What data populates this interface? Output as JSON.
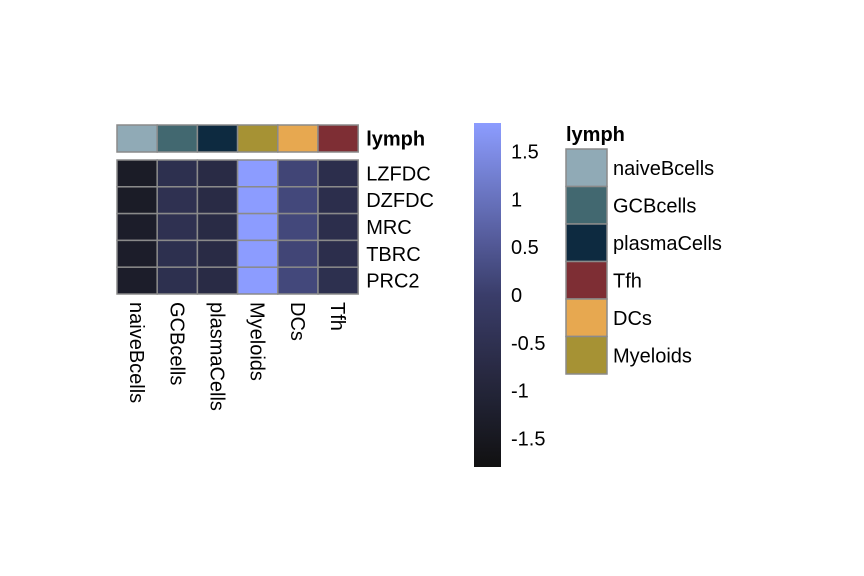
{
  "chart_data": {
    "type": "heatmap",
    "columns": [
      "naiveBcells",
      "GCBcells",
      "plasmaCells",
      "Myeloids",
      "DCs",
      "Tfh"
    ],
    "rows": [
      "LZFDC",
      "DZFDC",
      "MRC",
      "TBRC",
      "PRC2"
    ],
    "values": [
      [
        -1.35,
        -0.55,
        -0.75,
        1.8,
        0.15,
        -0.6
      ],
      [
        -1.35,
        -0.5,
        -0.75,
        1.8,
        0.2,
        -0.6
      ],
      [
        -1.3,
        -0.5,
        -0.75,
        1.8,
        0.2,
        -0.6
      ],
      [
        -1.3,
        -0.55,
        -0.75,
        1.8,
        0.15,
        -0.6
      ],
      [
        -1.3,
        -0.55,
        -0.75,
        1.8,
        0.2,
        -0.55
      ]
    ],
    "annotation": {
      "title": "lymph",
      "column_groups": [
        "naiveBcells",
        "GCBcells",
        "plasmaCells",
        "Myeloids",
        "DCs",
        "Tfh"
      ],
      "legend_entries": [
        {
          "label": "naiveBcells",
          "color": "#90AAB6"
        },
        {
          "label": "GCBcells",
          "color": "#426870"
        },
        {
          "label": "plasmaCells",
          "color": "#0D2A40"
        },
        {
          "label": "Tfh",
          "color": "#7E2E34"
        },
        {
          "label": "DCs",
          "color": "#E7A850"
        },
        {
          "label": "Myeloids",
          "color": "#A69234"
        }
      ]
    },
    "color_scale": {
      "range": [
        -1.8,
        1.8
      ],
      "low_color": "#111111",
      "mid_color": "#3A3D6A",
      "high_color": "#8C9CFF",
      "ticks": [
        1.5,
        1,
        0.5,
        0,
        -0.5,
        -1,
        -1.5
      ],
      "tick_labels": [
        "1.5",
        "1",
        "0.5",
        "0",
        "-0.5",
        "-1",
        "-1.5"
      ]
    },
    "legend_placement": "right"
  }
}
